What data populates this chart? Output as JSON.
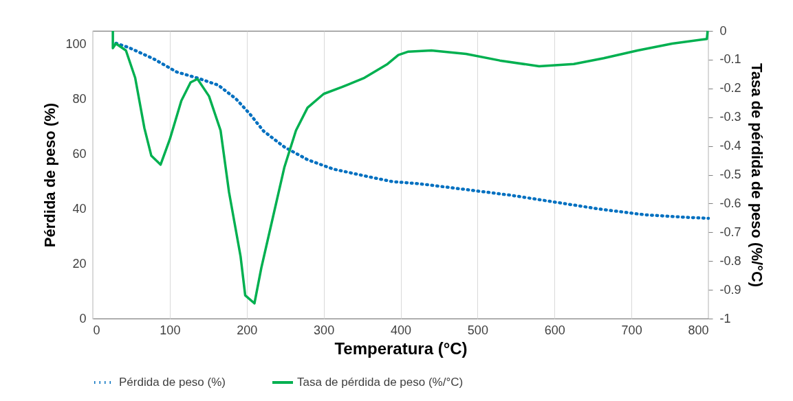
{
  "chart_data": {
    "type": "line",
    "xlabel": "Temperatura (°C)",
    "ylabel": "Pérdida de peso (%)",
    "y2label": "Tasa de pérdida de peso (%/°C)",
    "xlim": [
      0,
      800
    ],
    "xticks": [
      0,
      100,
      200,
      300,
      400,
      500,
      600,
      700,
      800
    ],
    "ylim": [
      0,
      105
    ],
    "yticks": [
      0,
      20,
      40,
      60,
      80,
      100
    ],
    "y2lim": [
      -1,
      0
    ],
    "y2ticks": [
      -1,
      -0.9,
      -0.8,
      -0.7,
      -0.6,
      -0.5,
      -0.4,
      -0.3,
      -0.2,
      -0.1,
      0
    ],
    "grid": "x",
    "legend": "bottom",
    "marker": "none",
    "series": [
      {
        "name": "Pérdida de peso (%)",
        "color": "#0070c0",
        "line_style": "dotted",
        "x": [
          30,
          46,
          79,
          109,
          136,
          163,
          186,
          204,
          222,
          249,
          279,
          312,
          353,
          389,
          425,
          485,
          544,
          601,
          658,
          717,
          768,
          800
        ],
        "values": [
          100.5,
          99.0,
          94.8,
          90.0,
          87.8,
          85.2,
          80.2,
          74.7,
          68.4,
          62.6,
          58.0,
          54.6,
          52.1,
          50.0,
          49.2,
          47.1,
          45.0,
          42.5,
          40.0,
          37.9,
          37.0,
          36.6
        ]
      },
      {
        "name": "Tasa de pérdida de peso (%/°C)",
        "color": "#00b050",
        "line_style": "solid",
        "axis": "y2",
        "x": [
          26,
          26,
          30,
          43,
          55,
          67,
          76,
          88,
          100,
          115,
          127,
          136,
          151,
          166,
          177,
          192,
          198,
          210,
          219,
          234,
          249,
          264,
          279,
          300,
          324,
          353,
          383,
          397,
          410,
          440,
          485,
          529,
          580,
          625,
          664,
          708,
          753,
          798,
          799
        ],
        "values": [
          0,
          -0.06,
          -0.044,
          -0.068,
          -0.163,
          -0.338,
          -0.434,
          -0.465,
          -0.377,
          -0.243,
          -0.179,
          -0.167,
          -0.227,
          -0.346,
          -0.561,
          -0.784,
          -0.919,
          -0.947,
          -0.823,
          -0.648,
          -0.473,
          -0.346,
          -0.267,
          -0.219,
          -0.195,
          -0.163,
          -0.115,
          -0.084,
          -0.072,
          -0.068,
          -0.08,
          -0.103,
          -0.123,
          -0.115,
          -0.095,
          -0.068,
          -0.044,
          -0.028,
          0
        ]
      }
    ]
  }
}
